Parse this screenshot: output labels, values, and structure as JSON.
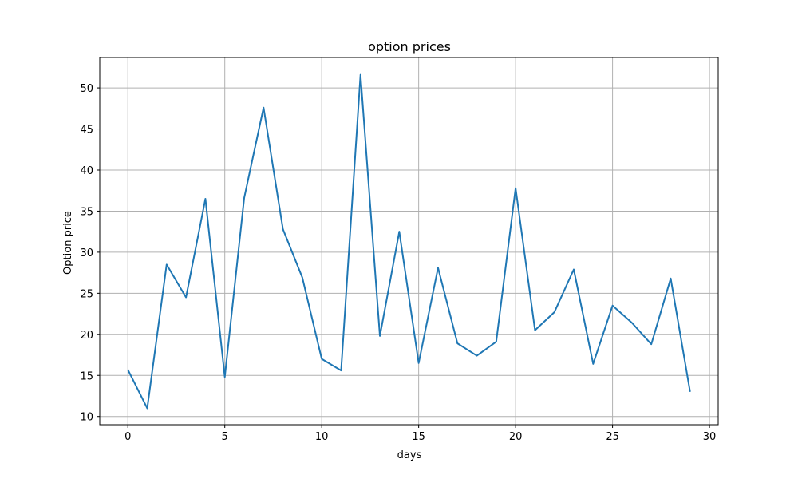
{
  "chart_data": {
    "type": "line",
    "title": "option prices",
    "xlabel": "days",
    "ylabel": "Option price",
    "xlim": [
      -1.45,
      30.45
    ],
    "ylim": [
      9.0,
      53.7
    ],
    "xticks": [
      0,
      5,
      10,
      15,
      20,
      25,
      30
    ],
    "yticks": [
      10,
      15,
      20,
      25,
      30,
      35,
      40,
      45,
      50
    ],
    "grid": true,
    "line_color": "#1f77b4",
    "series": [
      {
        "x": [
          0,
          1,
          2,
          3,
          4,
          5,
          6,
          7,
          8,
          9,
          10,
          11,
          12,
          13,
          14,
          15,
          16,
          17,
          18,
          19,
          20,
          21,
          22,
          23,
          24,
          25,
          26,
          27,
          28,
          29
        ],
        "values": [
          15.7,
          11.0,
          28.5,
          24.5,
          36.5,
          14.8,
          36.6,
          47.6,
          32.8,
          26.9,
          17.0,
          15.6,
          51.6,
          19.8,
          32.5,
          16.5,
          28.1,
          18.9,
          17.4,
          19.1,
          37.8,
          20.5,
          22.7,
          27.9,
          16.4,
          23.5,
          21.4,
          18.8,
          26.8,
          13.0
        ]
      }
    ]
  }
}
